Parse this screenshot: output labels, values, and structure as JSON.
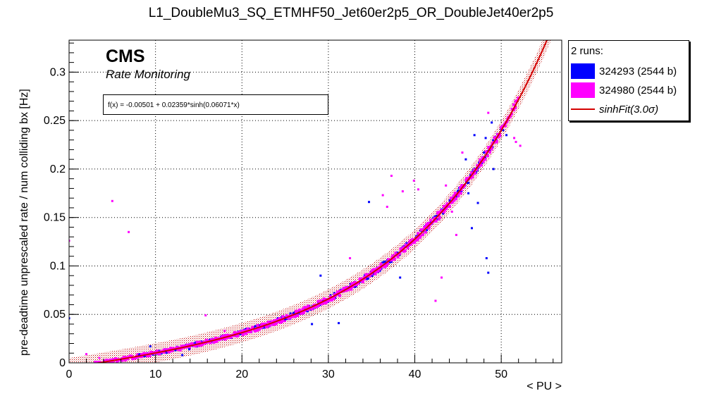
{
  "chart_data": {
    "type": "scatter",
    "title": "L1_DoubleMu3_SQ_ETMHF50_Jet60er2p5_OR_DoubleJet40er2p5",
    "xlabel": "< PU >",
    "ylabel": "pre-deadtime unprescaled rate / num colliding bx [Hz]",
    "xlim": [
      0,
      57
    ],
    "ylim": [
      0,
      0.333
    ],
    "x_ticks": [
      0,
      10,
      20,
      30,
      40,
      50
    ],
    "y_ticks": [
      0,
      0.05,
      0.1,
      0.15,
      0.2,
      0.25,
      0.3
    ],
    "x_tick_labels": [
      "0",
      "10",
      "20",
      "30",
      "40",
      "50"
    ],
    "y_tick_labels": [
      "0",
      "0.05",
      "0.1",
      "0.15",
      "0.2",
      "0.25",
      "0.3"
    ],
    "grid": true,
    "legend_header": "2 runs:",
    "legend_position": "outside-right-top",
    "series": [
      {
        "name": "324293 (2544 b)",
        "color": "#0000ff",
        "band": {
          "x": [
            8,
            50.5
          ]
        },
        "outliers": [
          [
            0,
            0.046
          ],
          [
            8.1,
            0.008
          ],
          [
            9.4,
            0.017
          ],
          [
            11.2,
            0.012
          ],
          [
            12.3,
            0.013
          ],
          [
            13.1,
            0.008
          ],
          [
            13.9,
            0.014
          ],
          [
            25.0,
            0.045
          ],
          [
            28.1,
            0.04
          ],
          [
            29.1,
            0.09
          ],
          [
            31.2,
            0.041
          ],
          [
            34.7,
            0.166
          ],
          [
            38.3,
            0.088
          ],
          [
            48.3,
            0.108
          ],
          [
            48.5,
            0.093
          ],
          [
            45.9,
            0.21
          ],
          [
            46.2,
            0.175
          ],
          [
            46.6,
            0.139
          ],
          [
            46.9,
            0.235
          ],
          [
            47.3,
            0.165
          ],
          [
            48.2,
            0.232
          ],
          [
            49.1,
            0.2
          ],
          [
            50.6,
            0.235
          ],
          [
            48.9,
            0.248
          ],
          [
            48.0,
            0.217
          ]
        ]
      },
      {
        "name": "324980 (2544 b)",
        "color": "#ff00ff",
        "band": {
          "x": [
            0,
            52
          ]
        },
        "outliers": [
          [
            0,
            0.126
          ],
          [
            5.0,
            0.167
          ],
          [
            6.9,
            0.135
          ],
          [
            15.8,
            0.049
          ],
          [
            18.0,
            0.033
          ],
          [
            2.0,
            0.009
          ],
          [
            3.5,
            0.005
          ],
          [
            36.3,
            0.173
          ],
          [
            36.8,
            0.161
          ],
          [
            37.3,
            0.193
          ],
          [
            38.6,
            0.177
          ],
          [
            39.9,
            0.188
          ],
          [
            40.4,
            0.179
          ],
          [
            42.4,
            0.064
          ],
          [
            42.8,
            0.148
          ],
          [
            43.1,
            0.088
          ],
          [
            43.6,
            0.183
          ],
          [
            44.8,
            0.132
          ],
          [
            45.5,
            0.217
          ],
          [
            44.3,
            0.156
          ],
          [
            51.5,
            0.232
          ],
          [
            51.7,
            0.228
          ],
          [
            52.2,
            0.224
          ],
          [
            48.5,
            0.258
          ],
          [
            32.5,
            0.108
          ]
        ]
      },
      {
        "name": "sinhFit(3.0σ)",
        "color": "#d40000",
        "function": "f(x) = -0.00501 + 0.02359*sinh(0.06071*x)",
        "params": {
          "p0": -0.00501,
          "p1": 0.02359,
          "p2": 0.06071
        },
        "band_sigma": 3.0,
        "band_halfwidth": 0.01
      }
    ]
  },
  "labels": {
    "cms": "CMS",
    "subtitle": "Rate Monitoring",
    "fit_formula": "f(x) = -0.00501 + 0.02359*sinh(0.06071*x)",
    "legend_header": "2 runs:",
    "legend_run1": "324293 (2544 b)",
    "legend_run2": "324980 (2544 b)",
    "legend_fit": "sinhFit(3.0σ)"
  }
}
